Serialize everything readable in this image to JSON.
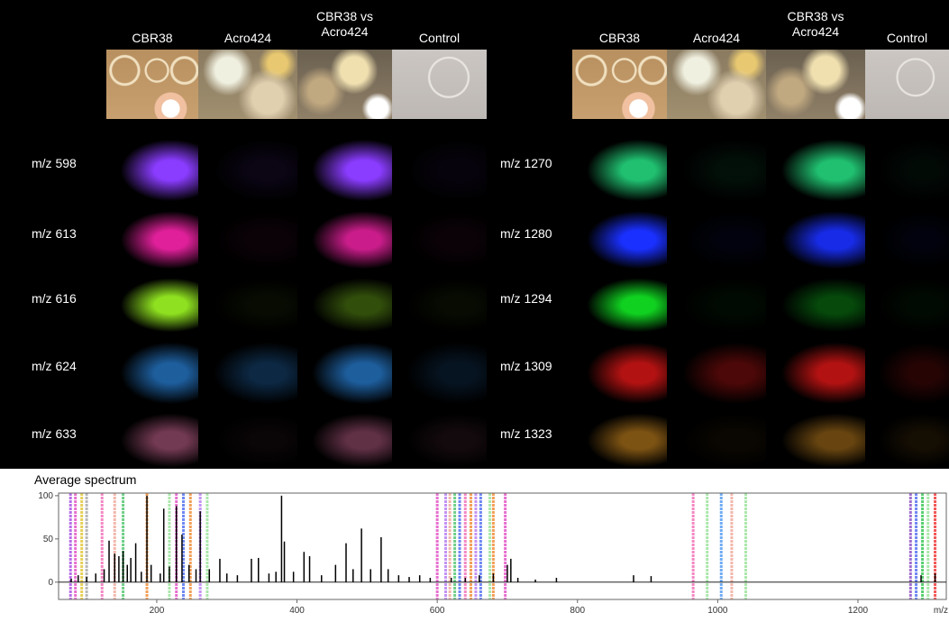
{
  "panels": [
    {
      "columns": [
        "CBR38",
        "Acro424",
        "CBR38 vs\nAcro424",
        "Control"
      ],
      "rows": [
        {
          "label": "m/z 598",
          "color": "#8a3cff"
        },
        {
          "label": "m/z 613",
          "color": "#e0209a"
        },
        {
          "label": "m/z 616",
          "color": "#8ee020"
        },
        {
          "label": "m/z 624",
          "color": "#2a86e0"
        },
        {
          "label": "m/z 633",
          "color": "#c0608a"
        }
      ]
    },
    {
      "columns": [
        "CBR38",
        "Acro424",
        "CBR38 vs\nAcro424",
        "Control"
      ],
      "rows": [
        {
          "label": "m/z 1270",
          "color": "#20c070"
        },
        {
          "label": "m/z 1280",
          "color": "#1a30ff"
        },
        {
          "label": "m/z 1294",
          "color": "#10d020"
        },
        {
          "label": "m/z 1309",
          "color": "#ff1a1a"
        },
        {
          "label": "m/z 1323",
          "color": "#d08a20"
        }
      ]
    }
  ],
  "chart_data": {
    "type": "spectrum",
    "title": "Average spectrum",
    "x_label": "m/z",
    "color": "#000000",
    "x": [
      78,
      88,
      100,
      113,
      125,
      132,
      140,
      146,
      152,
      158,
      163,
      170,
      178,
      186,
      192,
      205,
      210,
      218,
      228,
      236,
      246,
      256,
      262,
      275,
      290,
      300,
      315,
      335,
      345,
      360,
      370,
      378,
      382,
      395,
      410,
      418,
      435,
      455,
      470,
      480,
      492,
      505,
      520,
      530,
      545,
      560,
      575,
      590,
      620,
      640,
      660,
      680,
      700,
      705,
      715,
      740,
      770,
      880,
      905,
      1290,
      1310
    ],
    "values": [
      4,
      8,
      6,
      10,
      15,
      48,
      33,
      30,
      36,
      20,
      28,
      45,
      12,
      100,
      20,
      10,
      85,
      18,
      88,
      55,
      20,
      15,
      82,
      15,
      27,
      10,
      8,
      27,
      28,
      10,
      12,
      100,
      47,
      12,
      35,
      30,
      8,
      20,
      45,
      15,
      62,
      15,
      52,
      15,
      8,
      6,
      8,
      5,
      5,
      5,
      8,
      10,
      20,
      27,
      5,
      3,
      5,
      8,
      7,
      8,
      10
    ],
    "markers": {
      "x": [
        77,
        84,
        93,
        100,
        122,
        140,
        152,
        186,
        218,
        228,
        238,
        248,
        262,
        272,
        600,
        612,
        618,
        625,
        632,
        640,
        648,
        655,
        662,
        675,
        680,
        697,
        965,
        985,
        1005,
        1020,
        1040,
        1275,
        1283,
        1292,
        1300,
        1310
      ],
      "colors": [
        "#a040e0",
        "#e040c0",
        "#e0c020",
        "#a0a0a0",
        "#f060b0",
        "#f0a090",
        "#40c060",
        "#f08020",
        "#90e090",
        "#e040c0",
        "#4060f0",
        "#f08020",
        "#b070f0",
        "#90e090",
        "#e040c0",
        "#b070f0",
        "#f0a090",
        "#40c060",
        "#4060f0",
        "#f060b0",
        "#f08020",
        "#b070f0",
        "#4060f0",
        "#90e090",
        "#f08020",
        "#e040c0",
        "#f060b0",
        "#90e090",
        "#4090f0",
        "#f0a090",
        "#90e090",
        "#8040c0",
        "#4060f0",
        "#20c040",
        "#90e090",
        "#f02020"
      ]
    },
    "xlim": [
      60,
      1326
    ],
    "ylim": [
      -20,
      103
    ],
    "xticks": [
      200,
      400,
      600,
      800,
      1000,
      1200
    ],
    "yticks": [
      0,
      50,
      100
    ]
  }
}
